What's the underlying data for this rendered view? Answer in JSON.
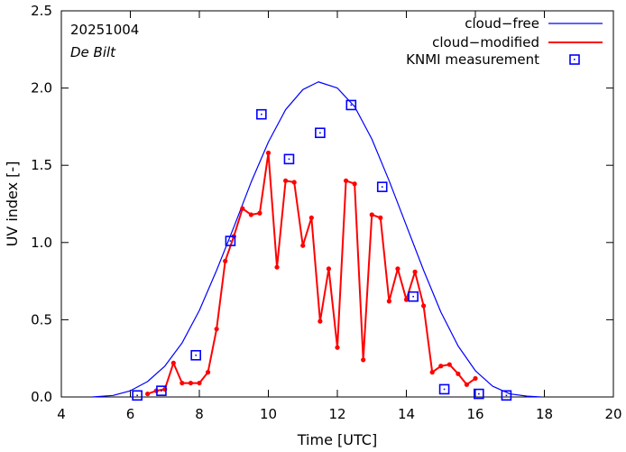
{
  "chart_data": {
    "type": "line",
    "title": "",
    "annotations": {
      "date": "20251004",
      "location": "De Bilt"
    },
    "xlabel": "Time  [UTC]",
    "ylabel": "UV index  [-]",
    "xlim": [
      4,
      20
    ],
    "ylim": [
      0,
      2.5
    ],
    "xticks": [
      4,
      6,
      8,
      10,
      12,
      14,
      16,
      18,
      20
    ],
    "yticks": [
      0.0,
      0.5,
      1.0,
      1.5,
      2.0,
      2.5
    ],
    "ytick_labels": [
      "0.0",
      "0.5",
      "1.0",
      "1.5",
      "2.0",
      "2.5"
    ],
    "legend": {
      "position": "top-right",
      "entries": [
        "cloud−free",
        "cloud−modified",
        "KNMI measurement"
      ]
    },
    "series": [
      {
        "name": "cloud−free",
        "color": "#0000ff",
        "style": "line",
        "x": [
          4.9,
          5.5,
          6.0,
          6.5,
          7.0,
          7.5,
          8.0,
          8.5,
          9.0,
          9.5,
          10.0,
          10.5,
          11.0,
          11.45,
          12.0,
          12.5,
          13.0,
          13.5,
          14.0,
          14.5,
          15.0,
          15.5,
          16.0,
          16.5,
          17.0,
          17.5,
          17.9
        ],
        "y": [
          0.0,
          0.01,
          0.04,
          0.1,
          0.2,
          0.35,
          0.56,
          0.82,
          1.1,
          1.39,
          1.65,
          1.86,
          1.99,
          2.04,
          2.0,
          1.88,
          1.67,
          1.4,
          1.11,
          0.82,
          0.55,
          0.33,
          0.17,
          0.07,
          0.02,
          0.005,
          0.0
        ]
      },
      {
        "name": "cloud−modified",
        "color": "#ff0000",
        "style": "line-points",
        "x": [
          6.5,
          6.75,
          7.0,
          7.25,
          7.5,
          7.75,
          8.0,
          8.25,
          8.5,
          8.75,
          9.0,
          9.25,
          9.5,
          9.75,
          10.0,
          10.25,
          10.5,
          10.75,
          11.0,
          11.25,
          11.5,
          11.75,
          12.0,
          12.25,
          12.5,
          12.75,
          13.0,
          13.25,
          13.5,
          13.75,
          14.0,
          14.25,
          14.5,
          14.75,
          15.0,
          15.25,
          15.5,
          15.75,
          16.0
        ],
        "y": [
          0.02,
          0.04,
          0.05,
          0.22,
          0.09,
          0.09,
          0.09,
          0.16,
          0.44,
          0.88,
          1.04,
          1.22,
          1.18,
          1.19,
          1.58,
          0.84,
          1.4,
          1.39,
          0.98,
          1.16,
          0.49,
          0.83,
          0.32,
          1.4,
          1.38,
          0.24,
          1.18,
          1.16,
          0.62,
          0.83,
          0.63,
          0.81,
          0.59,
          0.16,
          0.2,
          0.21,
          0.15,
          0.08,
          0.12
        ]
      },
      {
        "name": "KNMI measurement",
        "color": "#0000ff",
        "style": "open-squares",
        "x": [
          6.2,
          6.9,
          7.9,
          8.9,
          9.8,
          10.6,
          11.5,
          12.4,
          13.3,
          14.2,
          15.1,
          16.1,
          16.9
        ],
        "y": [
          0.01,
          0.04,
          0.27,
          1.01,
          1.83,
          1.54,
          1.71,
          1.89,
          1.36,
          0.65,
          0.05,
          0.02,
          0.01
        ]
      }
    ]
  }
}
